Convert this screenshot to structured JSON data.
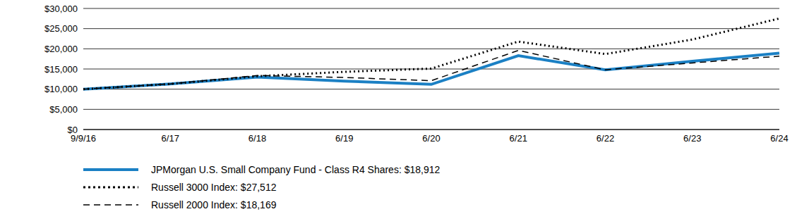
{
  "chart_data": {
    "type": "line",
    "categories": [
      "9/9/16",
      "6/17",
      "6/18",
      "6/19",
      "6/20",
      "6/21",
      "6/22",
      "6/23",
      "6/24"
    ],
    "series": [
      {
        "name": "JPMorgan U.S. Small Company Fund - Class R4 Shares: $18,912",
        "color": "#1b80c4",
        "line_style": "solid",
        "values": [
          10000,
          11300,
          13000,
          12000,
          11200,
          18300,
          14800,
          16900,
          18912
        ]
      },
      {
        "name": "Russell 3000 Index: $27,512",
        "color": "#000000",
        "line_style": "dotted",
        "values": [
          10000,
          11300,
          13200,
          14300,
          15100,
          21800,
          18700,
          22300,
          27512
        ]
      },
      {
        "name": "Russell 2000 Index: $18,169",
        "color": "#000000",
        "line_style": "dashed",
        "values": [
          10000,
          11300,
          13400,
          12900,
          12100,
          19600,
          14800,
          16500,
          18169
        ]
      }
    ],
    "ylim": [
      0,
      30000
    ],
    "yticks": [
      {
        "value": 0,
        "label": "$0"
      },
      {
        "value": 5000,
        "label": "$5,000"
      },
      {
        "value": 10000,
        "label": "$10,000"
      },
      {
        "value": 15000,
        "label": "$15,000"
      },
      {
        "value": 20000,
        "label": "$20,000"
      },
      {
        "value": 25000,
        "label": "$25,000"
      },
      {
        "value": 30000,
        "label": "$30,000"
      }
    ],
    "grid": true,
    "legend": "bottom"
  }
}
